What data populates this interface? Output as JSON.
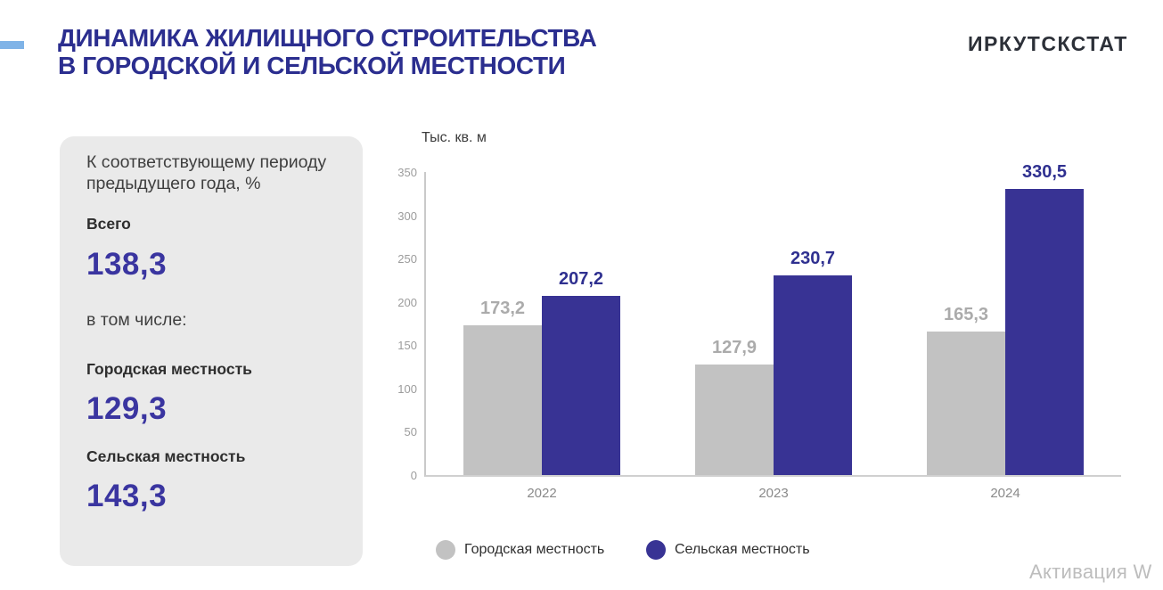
{
  "header": {
    "title_line1": "ДИНАМИКА ЖИЛИЩНОГО СТРОИТЕЛЬСТВА",
    "title_line2": "В ГОРОДСКОЙ И СЕЛЬСКОЙ МЕСТНОСТИ",
    "logo": "ИРКУТСКСТАТ",
    "accent_color": "#7fb3e7",
    "title_color": "#2b2e8f"
  },
  "side_panel": {
    "intro": "К соответствующему периоду предыдущего года, %",
    "total_label": "Всего",
    "total_value": "138,3",
    "note": "в том числе:",
    "urban_label": "Городская местность",
    "urban_value": "129,3",
    "rural_label": "Сельская местность",
    "rural_value": "143,3",
    "value_color": "#3a35a0"
  },
  "chart_data": {
    "type": "bar",
    "ylabel": "Тыс. кв. м",
    "categories": [
      "2022",
      "2023",
      "2024"
    ],
    "series": [
      {
        "name": "Городская местность",
        "color": "#c2c2c2",
        "label_color": "#ababab",
        "values": [
          173.2,
          127.9,
          165.3
        ],
        "labels": [
          "173,2",
          "127,9",
          "165,3"
        ]
      },
      {
        "name": "Сельская местность",
        "color": "#383394",
        "label_color": "#2f3090",
        "values": [
          207.2,
          230.7,
          330.5
        ],
        "labels": [
          "207,2",
          "230,7",
          "330,5"
        ]
      }
    ],
    "ylim": [
      0,
      350
    ],
    "yticks": [
      0,
      50,
      100,
      150,
      200,
      250,
      300,
      350
    ],
    "grid": false,
    "legend_position": "bottom"
  },
  "watermark": "Активация W"
}
